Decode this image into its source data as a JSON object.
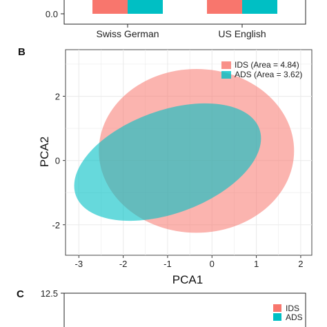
{
  "panels": {
    "a_tail": {
      "chart_data": {
        "type": "bar",
        "categories": [
          "Swiss German",
          "US English"
        ],
        "series": [
          {
            "name": "",
            "color": "#f8766d"
          },
          {
            "name": "",
            "color": "#00bfc4"
          }
        ],
        "y_tick_visible": "0.0",
        "y_visible_min": 0
      }
    },
    "b": {
      "letter": "B",
      "chart_data": {
        "type": "scatter",
        "subtype": "confidence-ellipses",
        "xlabel": "PCA1",
        "ylabel": "PCA2",
        "xlim": [
          -3.3,
          2.25
        ],
        "ylim": [
          -2.95,
          3.45
        ],
        "x_ticks": [
          "-3",
          "-2",
          "-1",
          "0",
          "1",
          "2"
        ],
        "y_ticks": [
          "-2",
          "0",
          "2"
        ],
        "grid": true,
        "legend_position": "top-right",
        "series": [
          {
            "name": "IDS (Area = 4.84)",
            "color": "#f8766d",
            "center": [
              -0.35,
              0.3
            ],
            "radii": [
              2.2,
              2.55
            ],
            "rotation_deg": 0
          },
          {
            "name": "ADS (Area = 3.62)",
            "color": "#00bfc4",
            "center": [
              -1.0,
              -0.05
            ],
            "radii": [
              2.2,
              1.6
            ],
            "rotation_deg": -20
          }
        ]
      }
    },
    "c": {
      "letter": "C",
      "chart_data": {
        "type": "bar",
        "y_tick_visible": "12.5",
        "legend_position": "right",
        "legend": [
          {
            "name": "IDS",
            "color": "#f8766d"
          },
          {
            "name": "ADS",
            "color": "#00bfc4"
          }
        ]
      }
    }
  }
}
